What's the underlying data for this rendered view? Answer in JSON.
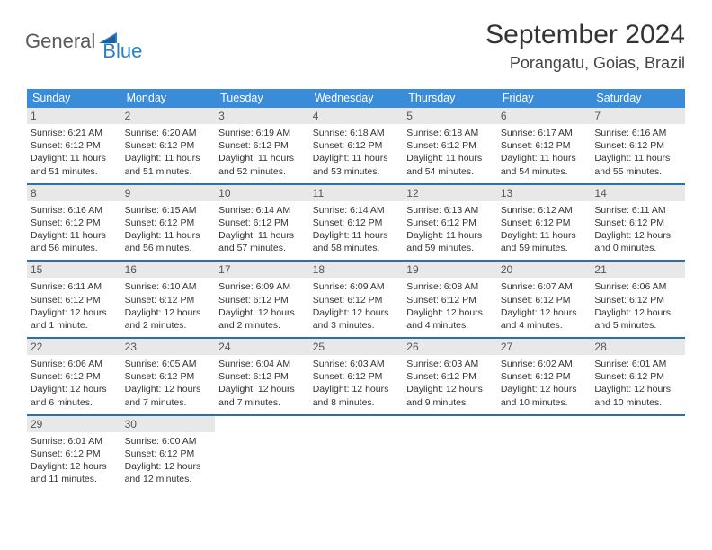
{
  "logo": {
    "text1": "General",
    "text2": "Blue"
  },
  "title": "September 2024",
  "location": "Porangatu, Goias, Brazil",
  "colors": {
    "header_bg": "#3a8bd8",
    "row_border": "#2a6fb0",
    "daynum_bg": "#e8e8e8",
    "text_gray": "#555555",
    "logo_gray": "#5a5a5a",
    "logo_blue": "#2a7fc9"
  },
  "weekdays": [
    "Sunday",
    "Monday",
    "Tuesday",
    "Wednesday",
    "Thursday",
    "Friday",
    "Saturday"
  ],
  "days": [
    {
      "n": "1",
      "sunrise": "Sunrise: 6:21 AM",
      "sunset": "Sunset: 6:12 PM",
      "daylight": "Daylight: 11 hours and 51 minutes."
    },
    {
      "n": "2",
      "sunrise": "Sunrise: 6:20 AM",
      "sunset": "Sunset: 6:12 PM",
      "daylight": "Daylight: 11 hours and 51 minutes."
    },
    {
      "n": "3",
      "sunrise": "Sunrise: 6:19 AM",
      "sunset": "Sunset: 6:12 PM",
      "daylight": "Daylight: 11 hours and 52 minutes."
    },
    {
      "n": "4",
      "sunrise": "Sunrise: 6:18 AM",
      "sunset": "Sunset: 6:12 PM",
      "daylight": "Daylight: 11 hours and 53 minutes."
    },
    {
      "n": "5",
      "sunrise": "Sunrise: 6:18 AM",
      "sunset": "Sunset: 6:12 PM",
      "daylight": "Daylight: 11 hours and 54 minutes."
    },
    {
      "n": "6",
      "sunrise": "Sunrise: 6:17 AM",
      "sunset": "Sunset: 6:12 PM",
      "daylight": "Daylight: 11 hours and 54 minutes."
    },
    {
      "n": "7",
      "sunrise": "Sunrise: 6:16 AM",
      "sunset": "Sunset: 6:12 PM",
      "daylight": "Daylight: 11 hours and 55 minutes."
    },
    {
      "n": "8",
      "sunrise": "Sunrise: 6:16 AM",
      "sunset": "Sunset: 6:12 PM",
      "daylight": "Daylight: 11 hours and 56 minutes."
    },
    {
      "n": "9",
      "sunrise": "Sunrise: 6:15 AM",
      "sunset": "Sunset: 6:12 PM",
      "daylight": "Daylight: 11 hours and 56 minutes."
    },
    {
      "n": "10",
      "sunrise": "Sunrise: 6:14 AM",
      "sunset": "Sunset: 6:12 PM",
      "daylight": "Daylight: 11 hours and 57 minutes."
    },
    {
      "n": "11",
      "sunrise": "Sunrise: 6:14 AM",
      "sunset": "Sunset: 6:12 PM",
      "daylight": "Daylight: 11 hours and 58 minutes."
    },
    {
      "n": "12",
      "sunrise": "Sunrise: 6:13 AM",
      "sunset": "Sunset: 6:12 PM",
      "daylight": "Daylight: 11 hours and 59 minutes."
    },
    {
      "n": "13",
      "sunrise": "Sunrise: 6:12 AM",
      "sunset": "Sunset: 6:12 PM",
      "daylight": "Daylight: 11 hours and 59 minutes."
    },
    {
      "n": "14",
      "sunrise": "Sunrise: 6:11 AM",
      "sunset": "Sunset: 6:12 PM",
      "daylight": "Daylight: 12 hours and 0 minutes."
    },
    {
      "n": "15",
      "sunrise": "Sunrise: 6:11 AM",
      "sunset": "Sunset: 6:12 PM",
      "daylight": "Daylight: 12 hours and 1 minute."
    },
    {
      "n": "16",
      "sunrise": "Sunrise: 6:10 AM",
      "sunset": "Sunset: 6:12 PM",
      "daylight": "Daylight: 12 hours and 2 minutes."
    },
    {
      "n": "17",
      "sunrise": "Sunrise: 6:09 AM",
      "sunset": "Sunset: 6:12 PM",
      "daylight": "Daylight: 12 hours and 2 minutes."
    },
    {
      "n": "18",
      "sunrise": "Sunrise: 6:09 AM",
      "sunset": "Sunset: 6:12 PM",
      "daylight": "Daylight: 12 hours and 3 minutes."
    },
    {
      "n": "19",
      "sunrise": "Sunrise: 6:08 AM",
      "sunset": "Sunset: 6:12 PM",
      "daylight": "Daylight: 12 hours and 4 minutes."
    },
    {
      "n": "20",
      "sunrise": "Sunrise: 6:07 AM",
      "sunset": "Sunset: 6:12 PM",
      "daylight": "Daylight: 12 hours and 4 minutes."
    },
    {
      "n": "21",
      "sunrise": "Sunrise: 6:06 AM",
      "sunset": "Sunset: 6:12 PM",
      "daylight": "Daylight: 12 hours and 5 minutes."
    },
    {
      "n": "22",
      "sunrise": "Sunrise: 6:06 AM",
      "sunset": "Sunset: 6:12 PM",
      "daylight": "Daylight: 12 hours and 6 minutes."
    },
    {
      "n": "23",
      "sunrise": "Sunrise: 6:05 AM",
      "sunset": "Sunset: 6:12 PM",
      "daylight": "Daylight: 12 hours and 7 minutes."
    },
    {
      "n": "24",
      "sunrise": "Sunrise: 6:04 AM",
      "sunset": "Sunset: 6:12 PM",
      "daylight": "Daylight: 12 hours and 7 minutes."
    },
    {
      "n": "25",
      "sunrise": "Sunrise: 6:03 AM",
      "sunset": "Sunset: 6:12 PM",
      "daylight": "Daylight: 12 hours and 8 minutes."
    },
    {
      "n": "26",
      "sunrise": "Sunrise: 6:03 AM",
      "sunset": "Sunset: 6:12 PM",
      "daylight": "Daylight: 12 hours and 9 minutes."
    },
    {
      "n": "27",
      "sunrise": "Sunrise: 6:02 AM",
      "sunset": "Sunset: 6:12 PM",
      "daylight": "Daylight: 12 hours and 10 minutes."
    },
    {
      "n": "28",
      "sunrise": "Sunrise: 6:01 AM",
      "sunset": "Sunset: 6:12 PM",
      "daylight": "Daylight: 12 hours and 10 minutes."
    },
    {
      "n": "29",
      "sunrise": "Sunrise: 6:01 AM",
      "sunset": "Sunset: 6:12 PM",
      "daylight": "Daylight: 12 hours and 11 minutes."
    },
    {
      "n": "30",
      "sunrise": "Sunrise: 6:00 AM",
      "sunset": "Sunset: 6:12 PM",
      "daylight": "Daylight: 12 hours and 12 minutes."
    }
  ]
}
